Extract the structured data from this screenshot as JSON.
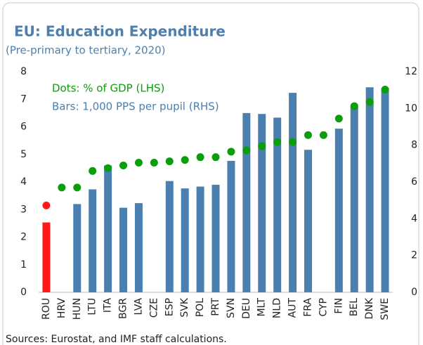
{
  "chart_data": {
    "type": "bar_dot",
    "title": "EU: Education Expenditure",
    "subtitle": "(Pre-primary to tertiary, 2020)",
    "source": "Sources: Eurostat, and IMF staff calculations.",
    "categories": [
      "ROU",
      "HRV",
      "HUN",
      "LTU",
      "ITA",
      "BGR",
      "LVA",
      "CZE",
      "ESP",
      "SVK",
      "POL",
      "PRT",
      "SVN",
      "DEU",
      "MLT",
      "NLD",
      "AUT",
      "FRA",
      "CYP",
      "FIN",
      "BEL",
      "DNK",
      "SWE"
    ],
    "series": [
      {
        "name": "Dots: % of GDP (LHS)",
        "kind": "dot",
        "axis": "y",
        "color": "#0a9e0a",
        "highlight_color": "#ff1a1a",
        "highlight_index": 0,
        "values": [
          3.15,
          3.8,
          3.8,
          4.4,
          4.5,
          4.6,
          4.7,
          4.7,
          4.75,
          4.8,
          4.9,
          4.9,
          5.1,
          5.15,
          5.3,
          5.45,
          5.45,
          5.7,
          5.7,
          6.3,
          6.75,
          6.9,
          7.35
        ]
      },
      {
        "name": "Bars: 1,000 PPS per pupil (RHS)",
        "kind": "bar",
        "axis": "y2",
        "color": "#4a7fb0",
        "highlight_color": "#ff1a1a",
        "highlight_index": 0,
        "values": [
          3.8,
          null,
          4.8,
          5.6,
          6.9,
          4.6,
          4.85,
          null,
          6.05,
          5.65,
          5.75,
          5.85,
          7.15,
          9.75,
          9.7,
          9.5,
          10.85,
          7.75,
          null,
          8.9,
          10.1,
          11.15,
          11.1
        ]
      }
    ],
    "ylim": [
      0,
      8
    ],
    "yticks": [
      0,
      1,
      2,
      3,
      4,
      5,
      6,
      7,
      8
    ],
    "y2lim": [
      0,
      12
    ],
    "y2ticks": [
      0,
      2,
      4,
      6,
      8,
      10,
      12
    ],
    "grid": false
  }
}
